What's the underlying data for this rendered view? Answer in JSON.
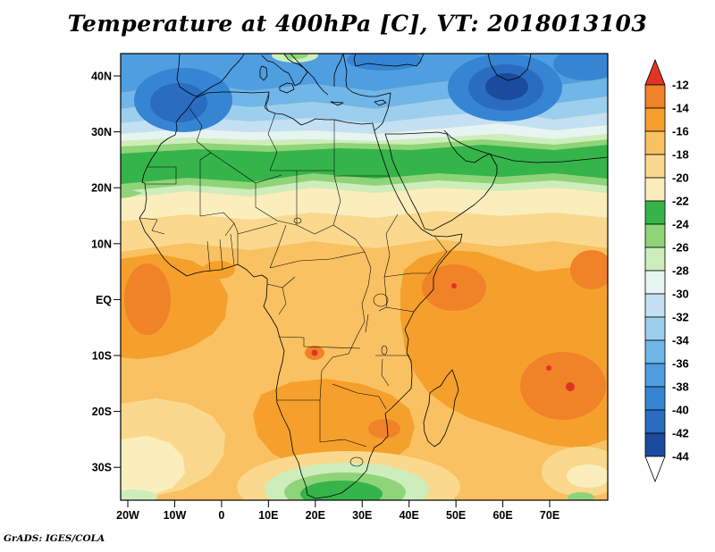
{
  "title": "Temperature at 400hPa [C], VT: 2018013103",
  "credit": "GrADS: IGES/COLA",
  "chart_data": {
    "type": "heatmap",
    "title": "Temperature at 400hPa [C], VT: 2018013103",
    "variable": "Temperature",
    "level": "400hPa",
    "units": "C",
    "valid_time": "2018013103",
    "contour_interval_C": 2,
    "x_axis": {
      "ticks": [
        "20W",
        "10W",
        "0",
        "10E",
        "20E",
        "30E",
        "40E",
        "50E",
        "60E",
        "70E"
      ]
    },
    "y_axis": {
      "ticks": [
        "40N",
        "30N",
        "20N",
        "10N",
        "EQ",
        "10S",
        "20S",
        "30S"
      ]
    },
    "colorbar": {
      "tick_labels": [
        "-12",
        "-14",
        "-16",
        "-18",
        "-20",
        "-22",
        "-24",
        "-26",
        "-28",
        "-30",
        "-32",
        "-34",
        "-36",
        "-38",
        "-40",
        "-42",
        "-44"
      ],
      "band_colors": [
        "#f08228",
        "#f5a02c",
        "#f9c161",
        "#fad98e",
        "#fbeebd",
        "#35b44a",
        "#8fd478",
        "#cdeebb",
        "#e6f4f2",
        "#c3e1f3",
        "#9ccfee",
        "#70b6e8",
        "#4f9ee0",
        "#3585d3",
        "#2a6cc0",
        "#1b4b9e"
      ],
      "arrow_top_color": "#e03424",
      "arrow_bottom_color": "#ffffff",
      "legend_position": "right"
    },
    "grid": false,
    "notable_features": [
      {
        "area": "Mediterranean / North Africa 30N-44N",
        "approx_value_C": "-28 to -40",
        "note": "cold blue band across top of map"
      },
      {
        "area": "Caspian region ~55-60E, 35-42N",
        "approx_value_C": "-42 to -44",
        "note": "coldest navy core"
      },
      {
        "area": "NW Africa / Morocco ~10W-0, 30-38N",
        "approx_value_C": "-38 to -42",
        "note": "secondary cold core"
      },
      {
        "area": "Sahara transition ~20-27N full width",
        "approx_value_C": "-22 to -26",
        "note": "green band"
      },
      {
        "area": "Tropical Africa 15N-30S",
        "approx_value_C": "-14 to -20",
        "note": "broad warm tan/orange field"
      },
      {
        "area": "West equatorial Atlantic coast ~20W-15W, 5N-10S",
        "approx_value_C": "-12 to -14",
        "note": "warm core"
      },
      {
        "area": "Horn of Africa / NW Indian Ocean ~45-55E, 0-10N",
        "approx_value_C": "-12 to -14",
        "note": "warm core"
      },
      {
        "area": "SW Indian Ocean ~65-80E, 10-25S",
        "approx_value_C": "-12 to -14",
        "note": "largest warm core, small > -12 specks"
      },
      {
        "area": "Southern Africa interior ~25-45E, 15-30S",
        "approx_value_C": "-12 to -16",
        "note": "warm patch"
      },
      {
        "area": "South of South Africa ~20-40E, 33-36S",
        "approx_value_C": "-22 to -26",
        "note": "green cold blob"
      }
    ]
  }
}
